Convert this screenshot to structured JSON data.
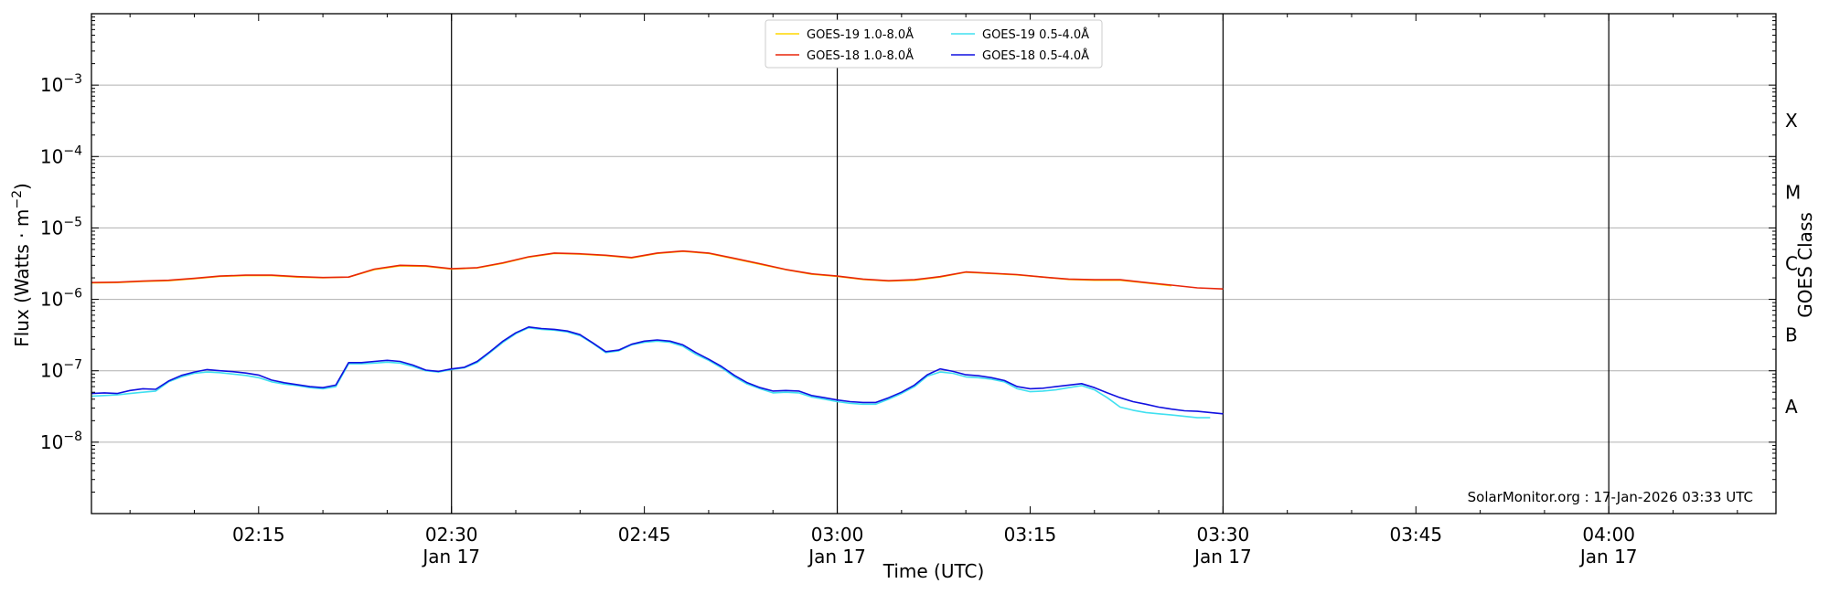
{
  "chart_data": {
    "type": "line",
    "xlabel": "Time (UTC)",
    "ylabel": "Flux (Watts · m",
    "ylabel_sup": "−2",
    "ylabel_close": ")",
    "right_label": "GOES Class",
    "credit": "SolarMonitor.org : 17-Jan-2026 03:33 UTC",
    "yscale": "log",
    "ylim": [
      1e-09,
      0.01
    ],
    "xlim_minutes": [
      0,
      131
    ],
    "x_time_origin": "02:02",
    "grid": "horizontal",
    "legend_position": "top-center",
    "y_ticks": [
      {
        "value": 1e-08,
        "base": "10",
        "exp": "−8"
      },
      {
        "value": 1e-07,
        "base": "10",
        "exp": "−7"
      },
      {
        "value": 1e-06,
        "base": "10",
        "exp": "−6"
      },
      {
        "value": 1e-05,
        "base": "10",
        "exp": "−5"
      },
      {
        "value": 0.0001,
        "base": "10",
        "exp": "−4"
      },
      {
        "value": 0.001,
        "base": "10",
        "exp": "−3"
      }
    ],
    "x_ticks": [
      {
        "minute": 13,
        "label": "02:15",
        "sub": ""
      },
      {
        "minute": 28,
        "label": "02:30",
        "sub": "Jan 17"
      },
      {
        "minute": 43,
        "label": "02:45",
        "sub": ""
      },
      {
        "minute": 58,
        "label": "03:00",
        "sub": "Jan 17"
      },
      {
        "minute": 73,
        "label": "03:15",
        "sub": ""
      },
      {
        "minute": 88,
        "label": "03:30",
        "sub": "Jan 17"
      },
      {
        "minute": 103,
        "label": "03:45",
        "sub": ""
      },
      {
        "minute": 118,
        "label": "04:00",
        "sub": "Jan 17"
      }
    ],
    "vlines_minutes": [
      28,
      58,
      88,
      118
    ],
    "goes_classes": [
      {
        "label": "A",
        "value": 3.16e-08
      },
      {
        "label": "B",
        "value": 3.16e-07
      },
      {
        "label": "C",
        "value": 3.16e-06
      },
      {
        "label": "M",
        "value": 3.16e-05
      },
      {
        "label": "X",
        "value": 0.000316
      }
    ],
    "series": [
      {
        "name": "GOES-19 1.0-8.0Å",
        "color": "#FFD700",
        "x": [
          0,
          2,
          4,
          6,
          8,
          10,
          12,
          14,
          16,
          18,
          20,
          22,
          24,
          26,
          28,
          30,
          32,
          34,
          36,
          38,
          40,
          42,
          44,
          46,
          48,
          50,
          52,
          54,
          56,
          58,
          60,
          62,
          64,
          66,
          68,
          70,
          72,
          74,
          76,
          78,
          80,
          82,
          84
        ],
        "values": [
          1.7e-06,
          1.72e-06,
          1.78e-06,
          1.82e-06,
          1.95e-06,
          2.1e-06,
          2.15e-06,
          2.15e-06,
          2.05e-06,
          2e-06,
          2.05e-06,
          2.6e-06,
          2.95e-06,
          2.9e-06,
          2.65e-06,
          2.75e-06,
          3.2e-06,
          3.9e-06,
          4.4e-06,
          4.3e-06,
          4.1e-06,
          3.8e-06,
          4.4e-06,
          4.7e-06,
          4.4e-06,
          3.7e-06,
          3.1e-06,
          2.6e-06,
          2.25e-06,
          2.1e-06,
          1.9e-06,
          1.8e-06,
          1.85e-06,
          2.05e-06,
          2.4e-06,
          2.3e-06,
          2.2e-06,
          2.05e-06,
          1.9e-06,
          1.85e-06,
          1.85e-06,
          1.7e-06,
          1.55e-06
        ]
      },
      {
        "name": "GOES-18 1.0-8.0Å",
        "color": "#E8260A",
        "x": [
          0,
          2,
          4,
          6,
          8,
          10,
          12,
          14,
          16,
          18,
          20,
          22,
          24,
          26,
          28,
          30,
          32,
          34,
          36,
          38,
          40,
          42,
          44,
          46,
          48,
          50,
          52,
          54,
          56,
          58,
          60,
          62,
          64,
          66,
          68,
          70,
          72,
          74,
          76,
          78,
          80,
          82,
          84,
          86,
          88
        ],
        "values": [
          1.72e-06,
          1.74e-06,
          1.8e-06,
          1.85e-06,
          1.97e-06,
          2.12e-06,
          2.18e-06,
          2.18e-06,
          2.08e-06,
          2.02e-06,
          2.05e-06,
          2.65e-06,
          3e-06,
          2.95e-06,
          2.68e-06,
          2.78e-06,
          3.25e-06,
          3.95e-06,
          4.45e-06,
          4.35e-06,
          4.15e-06,
          3.85e-06,
          4.45e-06,
          4.75e-06,
          4.45e-06,
          3.75e-06,
          3.15e-06,
          2.62e-06,
          2.28e-06,
          2.12e-06,
          1.92e-06,
          1.82e-06,
          1.88e-06,
          2.08e-06,
          2.42e-06,
          2.32e-06,
          2.22e-06,
          2.05e-06,
          1.92e-06,
          1.88e-06,
          1.88e-06,
          1.72e-06,
          1.58e-06,
          1.45e-06,
          1.4e-06
        ]
      },
      {
        "name": "GOES-19 0.5-4.0Å",
        "color": "#40E0F0",
        "x": [
          0,
          1,
          2,
          3,
          4,
          5,
          6,
          7,
          8,
          9,
          10,
          11,
          12,
          13,
          14,
          15,
          16,
          17,
          18,
          19,
          20,
          21,
          22,
          23,
          24,
          25,
          26,
          27,
          28,
          29,
          30,
          31,
          32,
          33,
          34,
          35,
          36,
          37,
          38,
          39,
          40,
          41,
          42,
          43,
          44,
          45,
          46,
          47,
          48,
          49,
          50,
          51,
          52,
          53,
          54,
          55,
          56,
          57,
          58,
          59,
          60,
          61,
          62,
          63,
          64,
          65,
          66,
          67,
          68,
          69,
          70,
          71,
          72,
          73,
          74,
          75,
          76,
          77,
          78,
          79,
          80,
          81,
          82,
          83,
          84,
          85,
          86,
          87
        ],
        "values": [
          4.4e-08,
          4.5e-08,
          4.6e-08,
          4.8e-08,
          5e-08,
          5.2e-08,
          7e-08,
          8.2e-08,
          9.2e-08,
          9.6e-08,
          9.4e-08,
          9e-08,
          8.6e-08,
          8e-08,
          7e-08,
          6.5e-08,
          6.2e-08,
          5.8e-08,
          5.6e-08,
          6e-08,
          1.25e-07,
          1.25e-07,
          1.28e-07,
          1.32e-07,
          1.28e-07,
          1.15e-07,
          1e-07,
          9.6e-08,
          1.04e-07,
          1.1e-07,
          1.3e-07,
          1.8e-07,
          2.5e-07,
          3.3e-07,
          4e-07,
          3.8e-07,
          3.7e-07,
          3.5e-07,
          3.1e-07,
          2.4e-07,
          1.8e-07,
          1.9e-07,
          2.3e-07,
          2.5e-07,
          2.6e-07,
          2.5e-07,
          2.2e-07,
          1.7e-07,
          1.4e-07,
          1.1e-07,
          8.2e-08,
          6.5e-08,
          5.6e-08,
          4.9e-08,
          5e-08,
          4.9e-08,
          4.3e-08,
          4e-08,
          3.7e-08,
          3.5e-08,
          3.4e-08,
          3.4e-08,
          4e-08,
          4.8e-08,
          6e-08,
          8.4e-08,
          9.6e-08,
          9.2e-08,
          8.2e-08,
          8e-08,
          7.6e-08,
          7e-08,
          5.6e-08,
          5.1e-08,
          5.2e-08,
          5.4e-08,
          5.8e-08,
          6.2e-08,
          5.4e-08,
          4.2e-08,
          3.1e-08,
          2.8e-08,
          2.6e-08,
          2.5e-08,
          2.4e-08,
          2.3e-08,
          2.2e-08,
          2.2e-08
        ]
      },
      {
        "name": "GOES-18 0.5-4.0Å",
        "color": "#1010E0",
        "x": [
          0,
          1,
          2,
          3,
          4,
          5,
          6,
          7,
          8,
          9,
          10,
          11,
          12,
          13,
          14,
          15,
          16,
          17,
          18,
          19,
          20,
          21,
          22,
          23,
          24,
          25,
          26,
          27,
          28,
          29,
          30,
          31,
          32,
          33,
          34,
          35,
          36,
          37,
          38,
          39,
          40,
          41,
          42,
          43,
          44,
          45,
          46,
          47,
          48,
          49,
          50,
          51,
          52,
          53,
          54,
          55,
          56,
          57,
          58,
          59,
          60,
          61,
          62,
          63,
          64,
          65,
          66,
          67,
          68,
          69,
          70,
          71,
          72,
          73,
          74,
          75,
          76,
          77,
          78,
          79,
          80,
          81,
          82,
          83,
          84,
          85,
          86,
          87,
          88
        ],
        "values": [
          4.8e-08,
          4.9e-08,
          4.8e-08,
          5.3e-08,
          5.6e-08,
          5.5e-08,
          7.2e-08,
          8.6e-08,
          9.6e-08,
          1.04e-07,
          1e-07,
          9.7e-08,
          9.3e-08,
          8.7e-08,
          7.4e-08,
          6.8e-08,
          6.4e-08,
          6e-08,
          5.8e-08,
          6.3e-08,
          1.3e-07,
          1.3e-07,
          1.35e-07,
          1.4e-07,
          1.35e-07,
          1.2e-07,
          1.02e-07,
          9.8e-08,
          1.06e-07,
          1.12e-07,
          1.35e-07,
          1.85e-07,
          2.6e-07,
          3.4e-07,
          4.1e-07,
          3.9e-07,
          3.8e-07,
          3.6e-07,
          3.2e-07,
          2.45e-07,
          1.85e-07,
          1.95e-07,
          2.35e-07,
          2.6e-07,
          2.7e-07,
          2.6e-07,
          2.3e-07,
          1.8e-07,
          1.45e-07,
          1.15e-07,
          8.6e-08,
          6.8e-08,
          5.8e-08,
          5.2e-08,
          5.3e-08,
          5.2e-08,
          4.5e-08,
          4.2e-08,
          3.9e-08,
          3.7e-08,
          3.6e-08,
          3.6e-08,
          4.2e-08,
          5e-08,
          6.3e-08,
          8.8e-08,
          1.06e-07,
          9.8e-08,
          8.8e-08,
          8.5e-08,
          8e-08,
          7.3e-08,
          6e-08,
          5.6e-08,
          5.7e-08,
          6e-08,
          6.3e-08,
          6.6e-08,
          5.8e-08,
          4.9e-08,
          4.2e-08,
          3.7e-08,
          3.4e-08,
          3.1e-08,
          2.9e-08,
          2.75e-08,
          2.7e-08,
          2.6e-08,
          2.5e-08
        ]
      }
    ]
  }
}
